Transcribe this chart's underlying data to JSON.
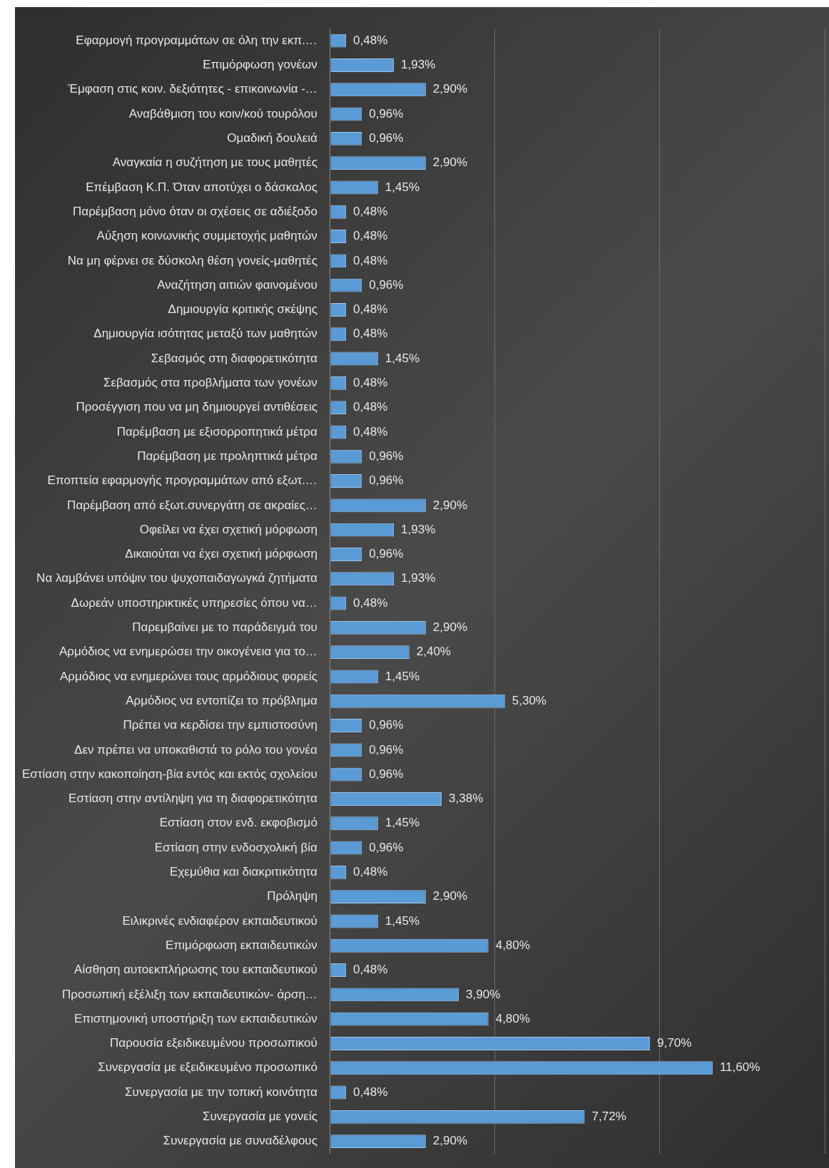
{
  "chart_data": {
    "type": "bar",
    "orientation": "horizontal",
    "categories": [
      "Εφαρμογή προγραμμάτων σε όλη την εκπ.…",
      "Επιμόρφωση γονέων",
      "Έμφαση στις κοιν. δεξιότητες - επικοινωνία -…",
      "Αναβάθμιση του κοιν/κού τουρόλου",
      "Ομαδική δουλειά",
      "Αναγκαία η συζήτηση με τους μαθητές",
      "Επέμβαση Κ.Π. Όταν αποτύχει ο δάσκαλος",
      "Παρέμβαση μόνο όταν οι σχέσεις σε αδιέξοδο",
      "Αύξηση κοινωνικής συμμετοχής μαθητών",
      "Να μη φέρνει σε δύσκολη θέση γονείς-μαθητές",
      "Αναζήτηση αιτιών φαινομένου",
      "Δημιουργία κριτικής σκέψης",
      "Δημιουργία ισότητας μεταξύ των μαθητών",
      "Σεβασμός στη διαφορετικότητα",
      "Σεβασμός στα προβλήματα των γονέων",
      "Προσέγγιση που να μη δημιουργεί αντιθέσεις",
      "Παρέμβαση με εξισορροπητικά μέτρα",
      "Παρέμβαση με προληπτικά μέτρα",
      "Εποπτεία εφαρμογής προγραμμάτων από εξωτ.…",
      "Παρέμβαση από εξωτ.συνεργάτη σε ακραίες…",
      "Οφείλει να έχει σχετική μόρφωση",
      "Δικαιούται να έχει σχετική μόρφωση",
      "Να λαμβάνει υπόψιν του ψυχοπαιδαγωγκά ζητήματα",
      "Δωρεάν υποστηρικτικές υπηρεσίες όπου να…",
      "Παρεμβαίνει με το παράδειγμά του",
      "Αρμόδιος να ενημερώσει την οικογένεια για το…",
      "Αρμόδιος να ενημερώνει τους αρμόδιους φορείς",
      "Αρμόδιος να εντοπίζει το πρόβλημα",
      "Πρέπει να κερδίσει την εμπιστοσύνη",
      "Δεν πρέπει να υποκαθιστά το ρόλο του γονέα",
      "Εστίαση στην κακοποίηση-βία εντός και εκτός σχολείου",
      "Εστίαση στην αντίληψη για τη διαφορετικότητα",
      "Εστίαση στον ενδ. εκφοβισμό",
      "Εστίαση στην ενδοσχολική βία",
      "Εχεμύθια και διακριτικότητα",
      "Πρόληψη",
      "Ειλικρινές ενδιαφέρον εκπαιδευτικού",
      "Επιμόρφωση εκπαιδευτικών",
      "Αίσθηση αυτοεκπλήρωσης του εκπαιδευτικού",
      "Προσωπική εξέλιξη των εκπαιδευτικών- άρση…",
      "Επιστημονική υποστήριξη των εκπαιδευτικών",
      "Παρουσία εξειδικευμένου προσωπικού",
      "Συνεργασία με εξειδικευμένο προσωπικό",
      "Συνεργασία με την τοπική κοινότητα",
      "Συνεργασία με γονείς",
      "Συνεργασία με συναδέλφους"
    ],
    "values": [
      0.48,
      1.93,
      2.9,
      0.96,
      0.96,
      2.9,
      1.45,
      0.48,
      0.48,
      0.48,
      0.96,
      0.48,
      0.48,
      1.45,
      0.48,
      0.48,
      0.48,
      0.96,
      0.96,
      2.9,
      1.93,
      0.96,
      1.93,
      0.48,
      2.9,
      2.4,
      1.45,
      5.3,
      0.96,
      0.96,
      0.96,
      3.38,
      1.45,
      0.96,
      0.48,
      2.9,
      1.45,
      4.8,
      0.48,
      3.9,
      4.8,
      9.7,
      11.6,
      0.48,
      7.72,
      2.9
    ],
    "value_labels": [
      "0,48%",
      "1,93%",
      "2,90%",
      "0,96%",
      "0,96%",
      "2,90%",
      "1,45%",
      "0,48%",
      "0,48%",
      "0,48%",
      "0,96%",
      "0,48%",
      "0,48%",
      "1,45%",
      "0,48%",
      "0,48%",
      "0,48%",
      "0,96%",
      "0,96%",
      "2,90%",
      "1,93%",
      "0,96%",
      "1,93%",
      "0,48%",
      "2,90%",
      "2,40%",
      "1,45%",
      "5,30%",
      "0,96%",
      "0,96%",
      "0,96%",
      "3,38%",
      "1,45%",
      "0,96%",
      "0,48%",
      "2,90%",
      "1,45%",
      "4,80%",
      "0,48%",
      "3,90%",
      "4,80%",
      "9,70%",
      "11,60%",
      "0,48%",
      "7,72%",
      "2,90%"
    ],
    "color": "#5b9bd5",
    "xlim": [
      0,
      15
    ],
    "xticks": [
      {
        "value": 0,
        "label": null
      },
      {
        "value": 5,
        "label": null
      },
      {
        "value": 10,
        "label": null
      },
      {
        "value": 15,
        "label": null
      }
    ],
    "grid": "x",
    "tick_labels": "y",
    "legend": false
  }
}
